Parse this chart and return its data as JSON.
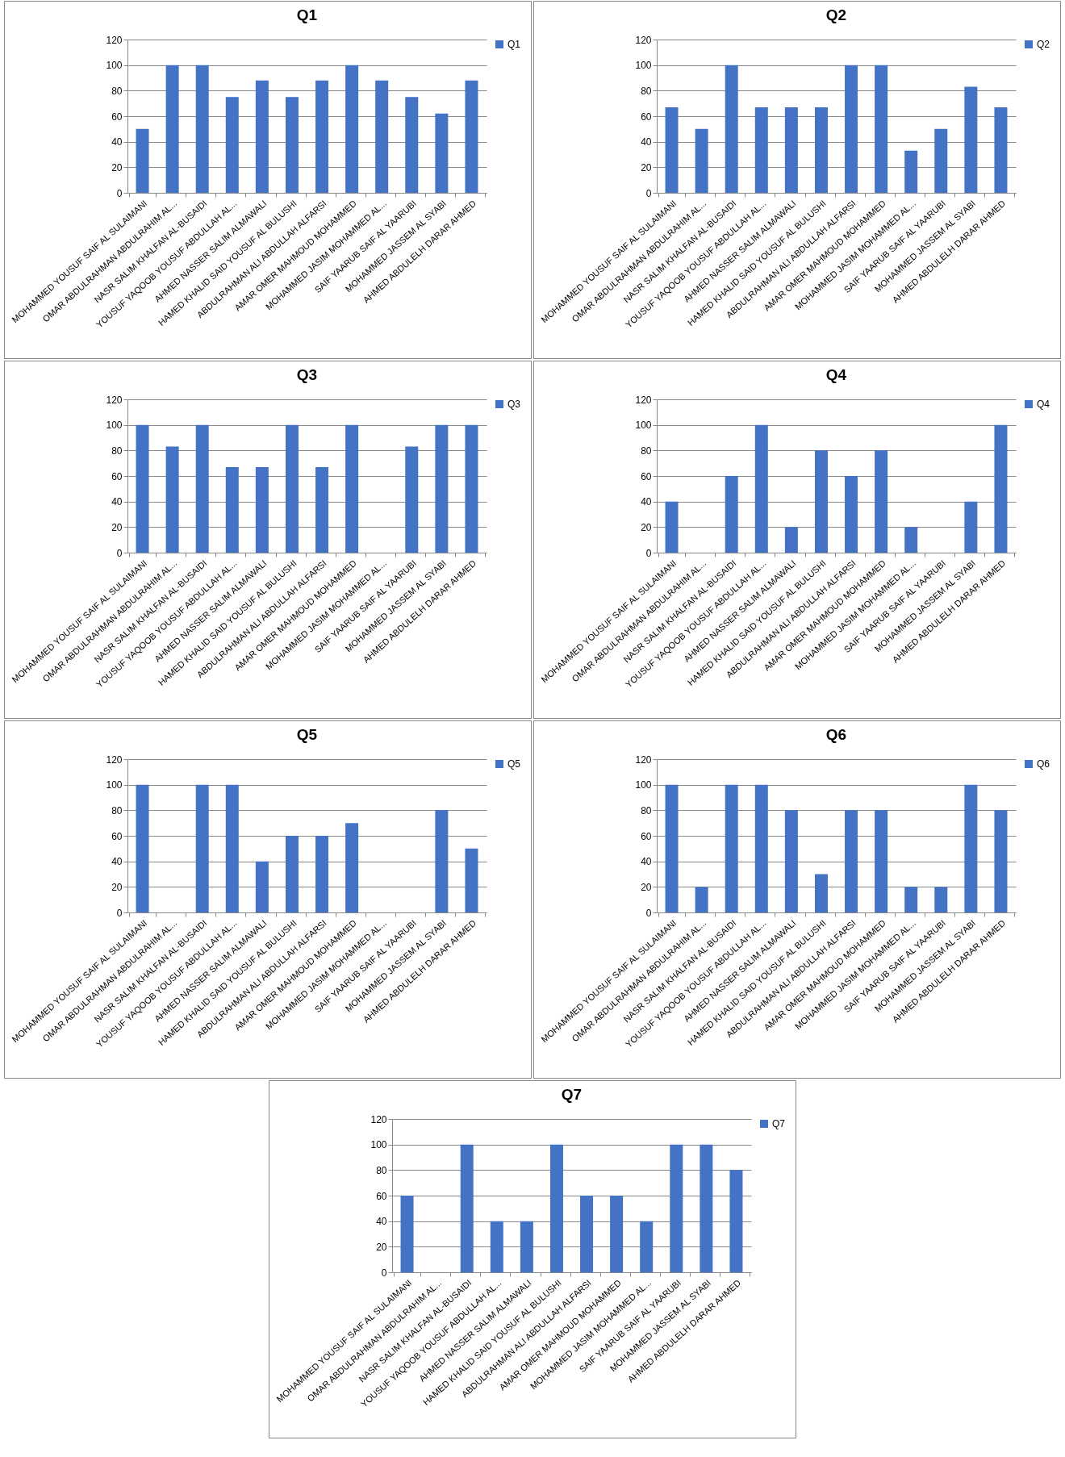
{
  "chart_data": [
    {
      "type": "bar",
      "title": "Q1",
      "categories": [
        "MOHAMMED YOUSUF SAIF AL SULAIMANI",
        "OMAR ABDULRAHMAN ABDULRAHIM AL...",
        "NASR SALIM KHALFAN AL-BUSAIDI",
        "YOUSUF YAQOOB YOUSUF ABDULLAH AL...",
        "AHMED NASSER SALIM ALMAWALI",
        "HAMED KHALID SAID YOUSUF AL BULUSHI",
        "ABDULRAHMAN ALI ABDULLAH ALFARSI",
        "AMAR OMER MAHMOUD MOHAMMED",
        "MOHAMMED JASIM MOHAMMED AL...",
        "SAIF YAARUB SAIF AL YAARUBI",
        "MOHAMMED JASSEM AL SYABI",
        "AHMED ABDULELH DARAR AHMED"
      ],
      "series": [
        {
          "name": "Q1",
          "color": "#4472c4",
          "values": [
            50,
            100,
            100,
            75,
            88,
            75,
            88,
            100,
            88,
            75,
            62,
            88
          ]
        }
      ],
      "ylim": [
        0,
        120
      ],
      "yticks": [
        0,
        20,
        40,
        60,
        80,
        100,
        120
      ],
      "grid": "y",
      "legend": "right"
    },
    {
      "type": "bar",
      "title": "Q2",
      "categories": [
        "MOHAMMED YOUSUF SAIF AL SULAIMANI",
        "OMAR ABDULRAHMAN ABDULRAHIM AL...",
        "NASR SALIM KHALFAN AL-BUSAIDI",
        "YOUSUF YAQOOB YOUSUF ABDULLAH AL...",
        "AHMED NASSER SALIM ALMAWALI",
        "HAMED KHALID SAID YOUSUF AL BULUSHI",
        "ABDULRAHMAN ALI ABDULLAH ALFARSI",
        "AMAR OMER MAHMOUD MOHAMMED",
        "MOHAMMED JASIM MOHAMMED AL...",
        "SAIF YAARUB SAIF AL YAARUBI",
        "MOHAMMED JASSEM AL SYABI",
        "AHMED ABDULELH DARAR AHMED"
      ],
      "series": [
        {
          "name": "Q2",
          "color": "#4472c4",
          "values": [
            67,
            50,
            100,
            67,
            67,
            67,
            100,
            100,
            33,
            50,
            83,
            67
          ]
        }
      ],
      "ylim": [
        0,
        120
      ],
      "yticks": [
        0,
        20,
        40,
        60,
        80,
        100,
        120
      ],
      "grid": "y",
      "legend": "right"
    },
    {
      "type": "bar",
      "title": "Q3",
      "categories": [
        "MOHAMMED YOUSUF SAIF AL SULAIMANI",
        "OMAR ABDULRAHMAN ABDULRAHIM AL...",
        "NASR SALIM KHALFAN AL-BUSAIDI",
        "YOUSUF YAQOOB YOUSUF ABDULLAH AL...",
        "AHMED NASSER SALIM ALMAWALI",
        "HAMED KHALID SAID YOUSUF AL BULUSHI",
        "ABDULRAHMAN ALI ABDULLAH ALFARSI",
        "AMAR OMER MAHMOUD MOHAMMED",
        "MOHAMMED JASIM MOHAMMED AL...",
        "SAIF YAARUB SAIF AL YAARUBI",
        "MOHAMMED JASSEM AL SYABI",
        "AHMED ABDULELH DARAR AHMED"
      ],
      "series": [
        {
          "name": "Q3",
          "color": "#4472c4",
          "values": [
            100,
            83,
            100,
            67,
            67,
            100,
            67,
            100,
            0,
            83,
            100,
            100
          ]
        }
      ],
      "ylim": [
        0,
        120
      ],
      "yticks": [
        0,
        20,
        40,
        60,
        80,
        100,
        120
      ],
      "grid": "y",
      "legend": "right"
    },
    {
      "type": "bar",
      "title": "Q4",
      "categories": [
        "MOHAMMED YOUSUF SAIF AL SULAIMANI",
        "OMAR ABDULRAHMAN ABDULRAHIM AL...",
        "NASR SALIM KHALFAN AL-BUSAIDI",
        "YOUSUF YAQOOB YOUSUF ABDULLAH AL...",
        "AHMED NASSER SALIM ALMAWALI",
        "HAMED KHALID SAID YOUSUF AL BULUSHI",
        "ABDULRAHMAN ALI ABDULLAH ALFARSI",
        "AMAR OMER MAHMOUD MOHAMMED",
        "MOHAMMED JASIM MOHAMMED AL...",
        "SAIF YAARUB SAIF AL YAARUBI",
        "MOHAMMED JASSEM AL SYABI",
        "AHMED ABDULELH DARAR AHMED"
      ],
      "series": [
        {
          "name": "Q4",
          "color": "#4472c4",
          "values": [
            40,
            0,
            60,
            100,
            20,
            80,
            60,
            80,
            20,
            0,
            40,
            100
          ]
        }
      ],
      "ylim": [
        0,
        120
      ],
      "yticks": [
        0,
        20,
        40,
        60,
        80,
        100,
        120
      ],
      "grid": "y",
      "legend": "right"
    },
    {
      "type": "bar",
      "title": "Q5",
      "categories": [
        "MOHAMMED YOUSUF SAIF AL SULAIMANI",
        "OMAR ABDULRAHMAN ABDULRAHIM AL...",
        "NASR SALIM KHALFAN AL-BUSAIDI",
        "YOUSUF YAQOOB YOUSUF ABDULLAH AL...",
        "AHMED NASSER SALIM ALMAWALI",
        "HAMED KHALID SAID YOUSUF AL BULUSHI",
        "ABDULRAHMAN ALI ABDULLAH ALFARSI",
        "AMAR OMER MAHMOUD MOHAMMED",
        "MOHAMMED JASIM MOHAMMED AL...",
        "SAIF YAARUB SAIF AL YAARUBI",
        "MOHAMMED JASSEM AL SYABI",
        "AHMED ABDULELH DARAR AHMED"
      ],
      "series": [
        {
          "name": "Q5",
          "color": "#4472c4",
          "values": [
            100,
            0,
            100,
            100,
            40,
            60,
            60,
            70,
            0,
            0,
            80,
            50
          ]
        }
      ],
      "ylim": [
        0,
        120
      ],
      "yticks": [
        0,
        20,
        40,
        60,
        80,
        100,
        120
      ],
      "grid": "y",
      "legend": "right"
    },
    {
      "type": "bar",
      "title": "Q6",
      "categories": [
        "MOHAMMED YOUSUF SAIF AL SULAIMANI",
        "OMAR ABDULRAHMAN ABDULRAHIM AL...",
        "NASR SALIM KHALFAN AL-BUSAIDI",
        "YOUSUF YAQOOB YOUSUF ABDULLAH AL...",
        "AHMED NASSER SALIM ALMAWALI",
        "HAMED KHALID SAID YOUSUF AL BULUSHI",
        "ABDULRAHMAN ALI ABDULLAH ALFARSI",
        "AMAR OMER MAHMOUD MOHAMMED",
        "MOHAMMED JASIM MOHAMMED AL...",
        "SAIF YAARUB SAIF AL YAARUBI",
        "MOHAMMED JASSEM AL SYABI",
        "AHMED ABDULELH DARAR AHMED"
      ],
      "series": [
        {
          "name": "Q6",
          "color": "#4472c4",
          "values": [
            100,
            20,
            100,
            100,
            80,
            30,
            80,
            80,
            20,
            20,
            100,
            80
          ]
        }
      ],
      "ylim": [
        0,
        120
      ],
      "yticks": [
        0,
        20,
        40,
        60,
        80,
        100,
        120
      ],
      "grid": "y",
      "legend": "right"
    },
    {
      "type": "bar",
      "title": "Q7",
      "categories": [
        "MOHAMMED YOUSUF SAIF AL SULAIMANI",
        "OMAR ABDULRAHMAN ABDULRAHIM AL...",
        "NASR SALIM KHALFAN AL-BUSAIDI",
        "YOUSUF YAQOOB YOUSUF ABDULLAH AL...",
        "AHMED NASSER SALIM ALMAWALI",
        "HAMED KHALID SAID YOUSUF AL BULUSHI",
        "ABDULRAHMAN ALI ABDULLAH ALFARSI",
        "AMAR OMER MAHMOUD MOHAMMED",
        "MOHAMMED JASIM MOHAMMED AL...",
        "SAIF YAARUB SAIF AL YAARUBI",
        "MOHAMMED JASSEM AL SYABI",
        "AHMED ABDULELH DARAR AHMED"
      ],
      "series": [
        {
          "name": "Q7",
          "color": "#4472c4",
          "values": [
            60,
            0,
            100,
            40,
            40,
            100,
            60,
            60,
            40,
            100,
            100,
            80
          ]
        }
      ],
      "ylim": [
        0,
        120
      ],
      "yticks": [
        0,
        20,
        40,
        60,
        80,
        100,
        120
      ],
      "grid": "y",
      "legend": "right"
    }
  ]
}
